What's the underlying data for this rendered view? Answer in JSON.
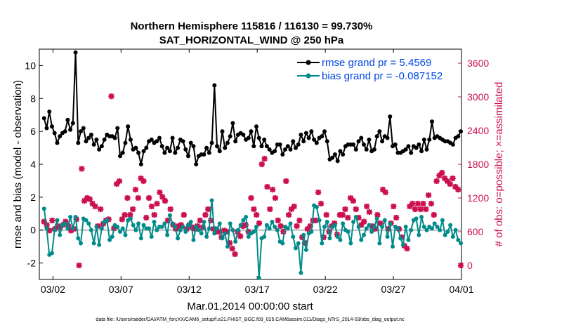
{
  "chart_data": {
    "type": "line",
    "title": "Northern Hemisphere 115816 / 116130 = 99.730%",
    "subtitle": "SAT_HORIZONTAL_WIND @ 250 hPa",
    "xlabel": "Mar.01,2014 00:00:00 start",
    "ylabel_left": "rmse and bias (model - observation)",
    "ylabel_right": "# of obs: o=possible; ×=assimilated",
    "footer": "data file: /Users/raeder/DAI/ATM_forcXX/CAM6_setup/f.e21.FHIST_BGC.f09_025.CAM6assim.011/Diags_NTrS_2014-03/obs_diag_output.nc",
    "x_ticks": [
      {
        "label": "03/02",
        "day": 2
      },
      {
        "label": "03/07",
        "day": 7
      },
      {
        "label": "03/12",
        "day": 12
      },
      {
        "label": "03/17",
        "day": 17
      },
      {
        "label": "03/22",
        "day": 22
      },
      {
        "label": "03/27",
        "day": 27
      },
      {
        "label": "04/01",
        "day": 32
      }
    ],
    "xlim": [
      1,
      32
    ],
    "ylim_left": [
      -3,
      11
    ],
    "yticks_left": [
      -2,
      0,
      2,
      4,
      6,
      8,
      10
    ],
    "ylim_right": [
      -250,
      3850
    ],
    "yticks_right": [
      0,
      600,
      1200,
      1800,
      2400,
      3000,
      3600
    ],
    "legend_position": "top-right",
    "colors": {
      "rmse": "#000000",
      "bias": "#008b8b",
      "obs": "#cc0f4f",
      "legend_text": "#0047e6",
      "zero_line": "#bdbdbd"
    },
    "series": [
      {
        "name": "rmse grand pr = 5.4569",
        "color": "#000000",
        "values": [
          6.8,
          6.2,
          7.2,
          6.3,
          5.9,
          5.3,
          5.7,
          5.9,
          6.0,
          6.7,
          6.1,
          6.5,
          10.8,
          5.3,
          6.0,
          6.2,
          5.4,
          5.6,
          5.8,
          5.2,
          5.5,
          4.9,
          5.1,
          5.5,
          5.8,
          5.7,
          5.7,
          5.6,
          6.2,
          4.5,
          4.7,
          5.3,
          6.3,
          5.5,
          4.9,
          5.0,
          4.7,
          4.0,
          4.8,
          5.0,
          5.4,
          5.5,
          5.3,
          5.4,
          5.6,
          5.1,
          4.7,
          5.0,
          4.8,
          5.6,
          4.7,
          5.0,
          5.5,
          5.4,
          4.9,
          4.5,
          5.3,
          5.1,
          4.0,
          4.5,
          4.6,
          4.6,
          5.0,
          4.7,
          5.3,
          8.8,
          5.1,
          4.8,
          6.0,
          5.0,
          5.3,
          5.7,
          6.5,
          5.4,
          5.8,
          5.9,
          5.8,
          5.5,
          5.6,
          6.0,
          5.1,
          6.3,
          5.6,
          5.1,
          5.5,
          5.1,
          4.9,
          4.7,
          4.8,
          5.2,
          5.2,
          4.6,
          4.9,
          5.1,
          4.9,
          5.4,
          5.0,
          5.2,
          5.8,
          5.4,
          5.9,
          5.6,
          6.0,
          5.5,
          5.3,
          5.6,
          5.7,
          6.0,
          5.4,
          4.3,
          4.4,
          4.6,
          4.2,
          4.8,
          4.6,
          5.1,
          5.2,
          5.2,
          5.2,
          4.9,
          5.4,
          5.6,
          5.2,
          4.9,
          5.5,
          4.8,
          4.9,
          5.7,
          6.0,
          5.4,
          5.7,
          5.6,
          6.9,
          5.1,
          5.2,
          4.7,
          4.7,
          4.8,
          4.9,
          5.1,
          4.7,
          5.1,
          5.0,
          5.2,
          4.8,
          5.5,
          4.9,
          5.5,
          6.6,
          5.6,
          5.7,
          5.6,
          5.5,
          5.4,
          5.4,
          5.3,
          5.2,
          5.6,
          5.7,
          6.0
        ]
      },
      {
        "name": "bias grand pr = -0.087152",
        "color": "#008b8b",
        "values": [
          1.3,
          0.1,
          -1.5,
          -1.4,
          0.0,
          0.6,
          -0.3,
          0.3,
          0.4,
          0.1,
          0.8,
          0.1,
          0.8,
          -0.5,
          -0.8,
          0.7,
          0.6,
          0.4,
          0.0,
          -0.8,
          0.2,
          -0.9,
          0.1,
          0.5,
          0.6,
          -0.6,
          -0.4,
          0.3,
          0.2,
          -0.1,
          0.1,
          -0.3,
          0.6,
          0.7,
          0.3,
          0.0,
          0.4,
          -0.5,
          0.3,
          0.1,
          0.1,
          -0.4,
          0.5,
          0.0,
          0.2,
          0.2,
          0.4,
          -0.3,
          0.9,
          0.4,
          0.2,
          -0.5,
          0.0,
          0.2,
          -0.1,
          0.3,
          0.5,
          -0.6,
          0.2,
          0.0,
          -0.2,
          0.5,
          -0.4,
          0.1,
          1.8,
          -0.2,
          0.1,
          0.4,
          -0.5,
          -0.2,
          -1.0,
          0.4,
          0.0,
          -0.7,
          0.0,
          0.3,
          0.6,
          0.8,
          -0.4,
          -0.2,
          -0.1,
          0.2,
          -2.9,
          -0.5,
          -0.4,
          0.3,
          0.1,
          0.5,
          0.2,
          0.0,
          -0.7,
          -0.8,
          0.2,
          0.1,
          0.4,
          -0.4,
          -1.1,
          -0.8,
          -2.6,
          -0.3,
          -1.2,
          -0.2,
          -0.1,
          1.5,
          1.4,
          0.6,
          -0.8,
          0.2,
          0.5,
          -0.5,
          0.2,
          0.3,
          -0.4,
          -0.6,
          0.4,
          0.0,
          -0.1,
          -0.8,
          0.5,
          0.8,
          0.2,
          -0.6,
          -0.3,
          0.1,
          0.3,
          -0.1,
          0.2,
          0.7,
          -0.8,
          0.2,
          0.6,
          -0.4,
          0.4,
          -1.0,
          0.2,
          0.1,
          -0.5,
          -0.9,
          0.2,
          -0.6,
          0.0,
          0.6,
          0.7,
          -0.3,
          0.8,
          0.2,
          0.0,
          0.2,
          0.1,
          0.4,
          0.2,
          0.0,
          0.6,
          -0.3,
          -0.1,
          0.3,
          -0.4,
          0.0,
          -0.6,
          -0.8
        ]
      },
      {
        "name": "# of obs assimilated",
        "color": "#cc0f4f",
        "axis": "right",
        "marker": "x",
        "values": [
          780,
          720,
          620,
          800,
          650,
          700,
          680,
          720,
          780,
          700,
          620,
          650,
          820,
          0,
          1720,
          1150,
          1200,
          1180,
          1100,
          1050,
          700,
          1000,
          740,
          800,
          820,
          3010,
          660,
          1450,
          1500,
          820,
          900,
          1200,
          900,
          1000,
          1350,
          1200,
          1550,
          1500,
          850,
          1200,
          1050,
          900,
          1100,
          1300,
          1220,
          1150,
          800,
          1000,
          720,
          650,
          700,
          720,
          900,
          650,
          720,
          680,
          650,
          700,
          800,
          680,
          900,
          1000,
          800,
          650,
          600,
          600,
          500,
          620,
          600,
          400,
          300,
          200,
          600,
          520,
          700,
          720,
          600,
          1200,
          1000,
          900,
          750,
          1800,
          1900,
          1400,
          1000,
          1350,
          1200,
          800,
          700,
          600,
          1500,
          900,
          1000,
          1050,
          700,
          800,
          500,
          400,
          650,
          700,
          800,
          800,
          1300,
          1100,
          500,
          900,
          600,
          700,
          750,
          550,
          900,
          900,
          1000,
          850,
          1200,
          1150,
          1000,
          850,
          720,
          780,
          1050,
          950,
          700,
          650,
          900,
          750,
          1350,
          1300,
          650,
          750,
          1050,
          850,
          650,
          500,
          350,
          300,
          1050,
          1100,
          1000,
          1100,
          1000,
          1100,
          1000,
          1250,
          1100,
          900,
          1500,
          1600,
          1650,
          1550,
          1500,
          1450,
          1550,
          1400,
          1350,
          0
        ]
      }
    ]
  }
}
